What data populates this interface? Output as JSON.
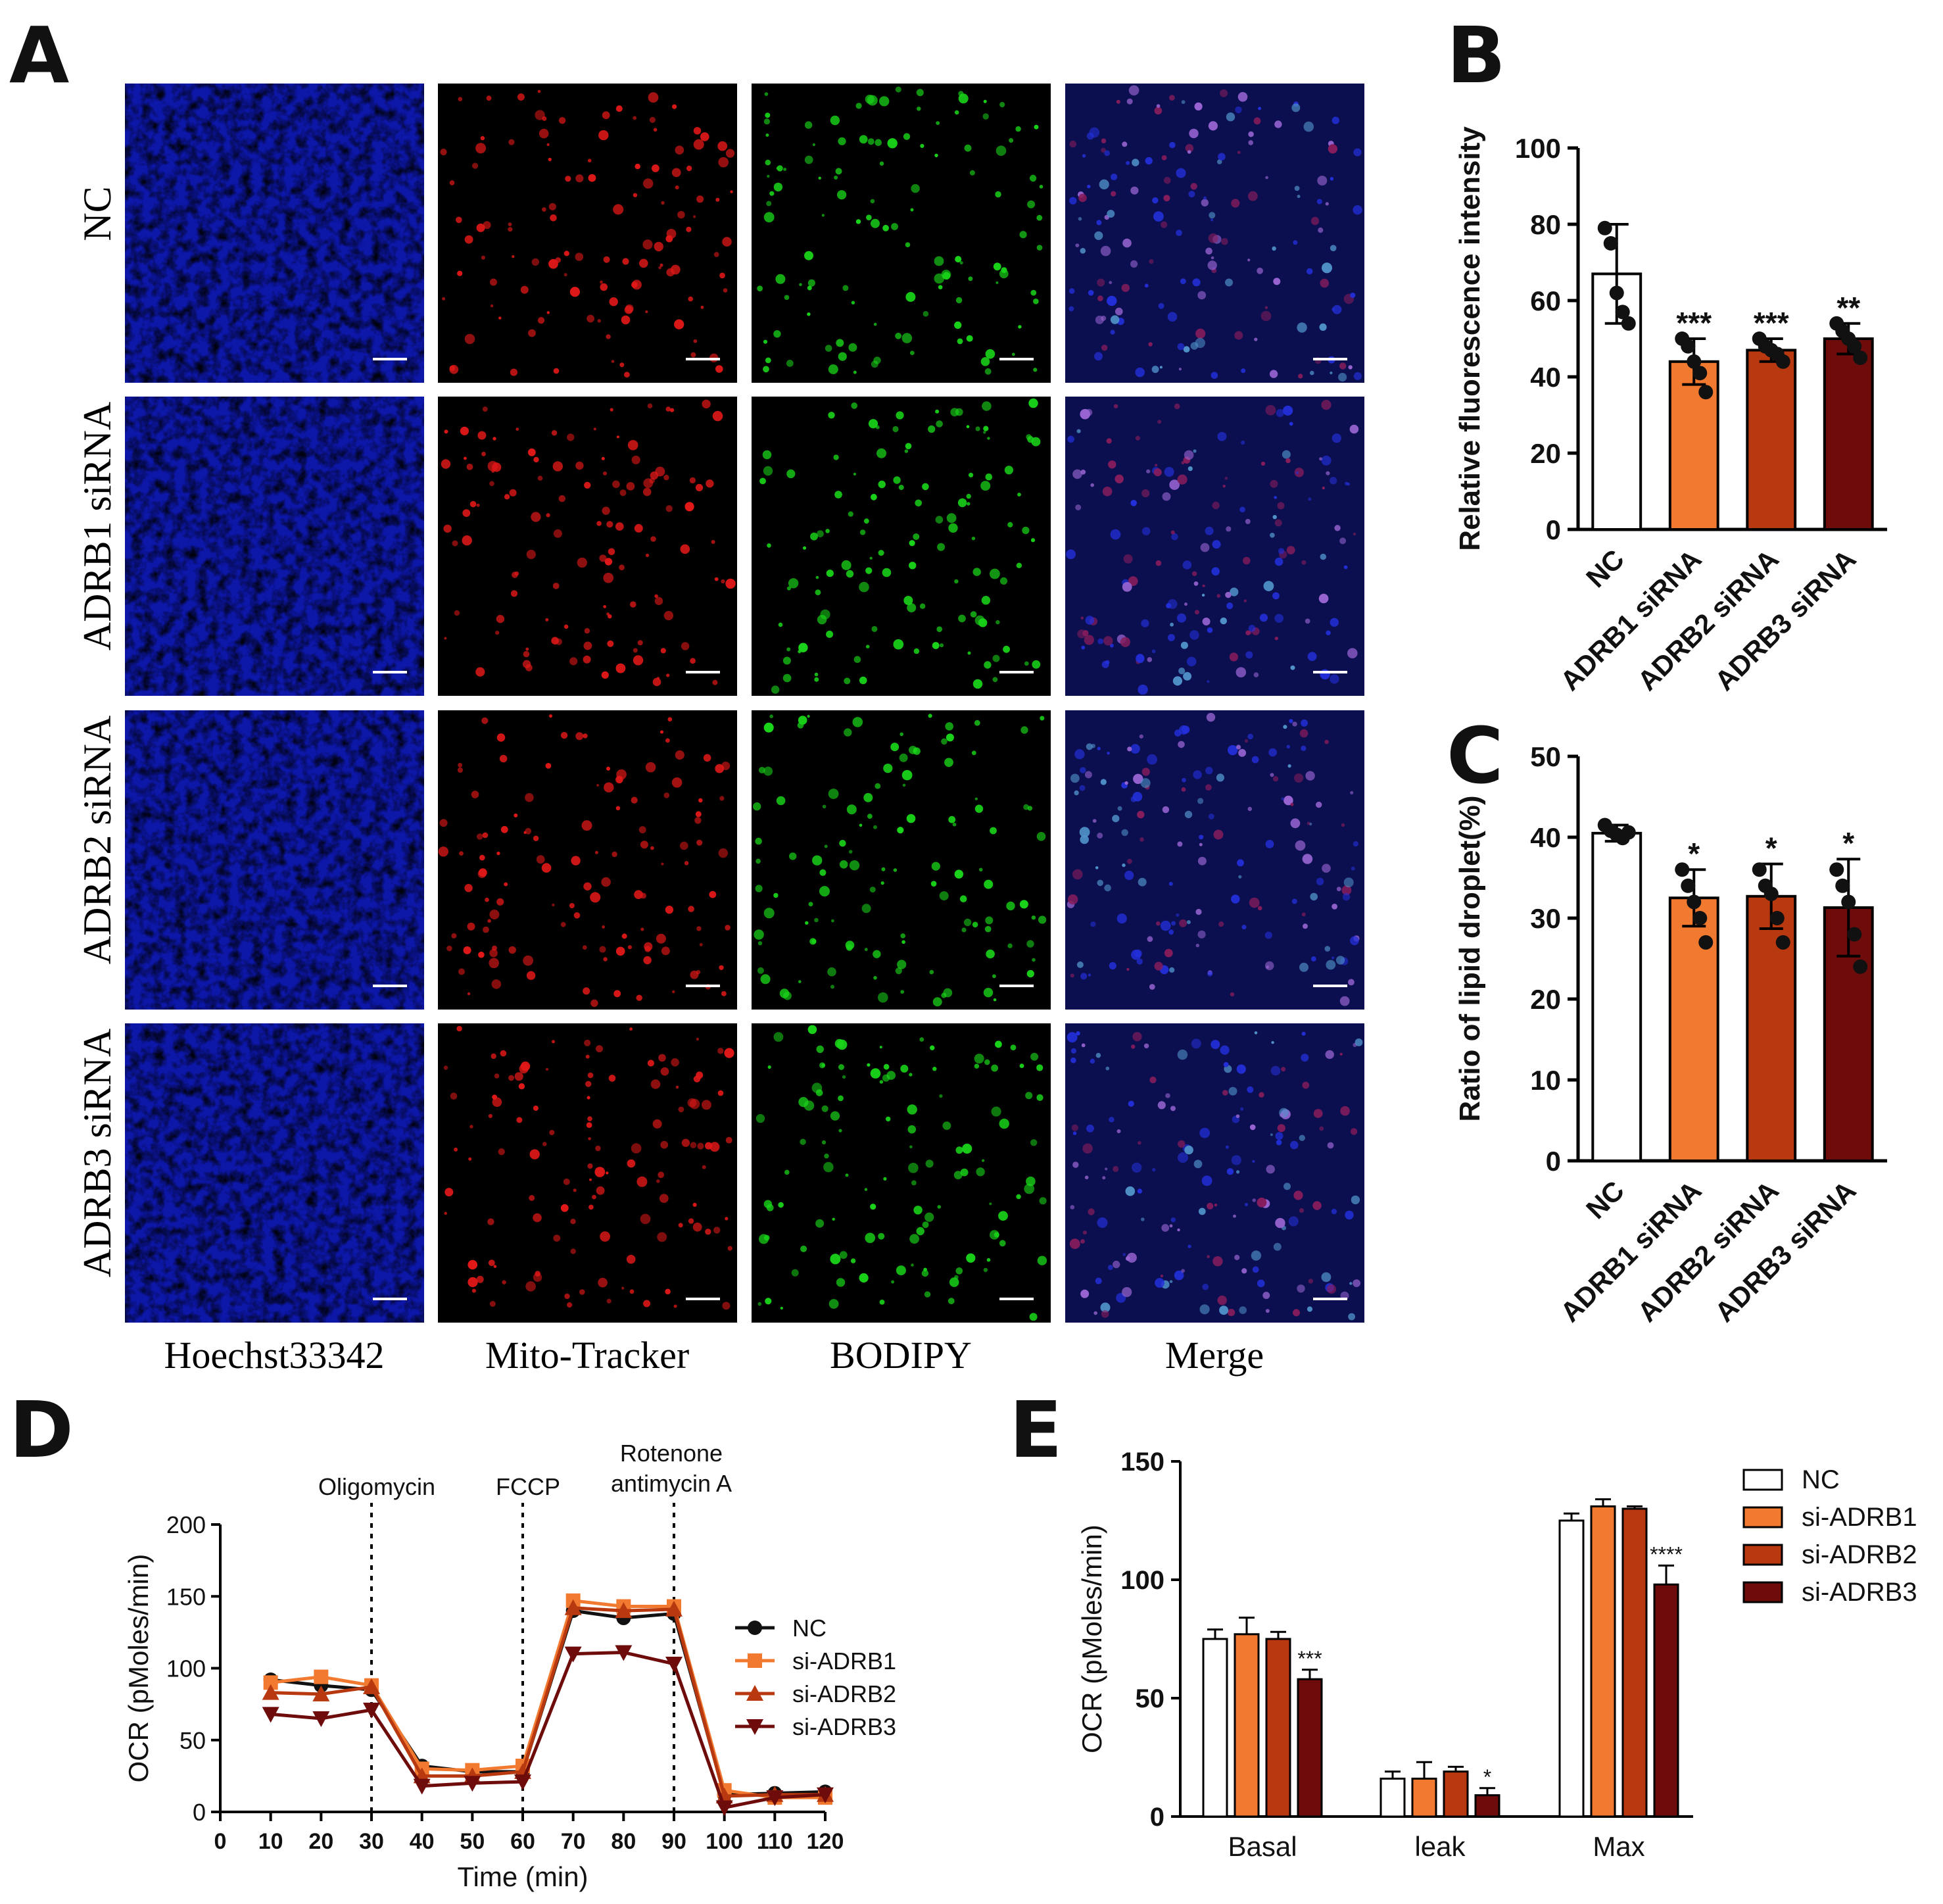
{
  "panels": {
    "A": {
      "letter": "A",
      "row_labels": [
        "NC",
        "ADRB1 siRNA",
        "ADRB2 siRNA",
        "ADRB3 siRNA"
      ],
      "column_labels": [
        "Hoechst33342",
        "Mito-Tracker",
        "BODIPY",
        "Merge"
      ],
      "channel_colors": [
        "#1a2cff",
        "#e01818",
        "#19d419",
        "#8a6cff"
      ]
    },
    "B": {
      "letter": "B"
    },
    "C": {
      "letter": "C"
    },
    "D": {
      "letter": "D"
    },
    "E": {
      "letter": "E"
    }
  },
  "chart_data": [
    {
      "id": "B",
      "type": "bar",
      "ylabel": "Relative fluorescence intensity",
      "ylim": [
        0,
        100
      ],
      "yticks": [
        0,
        20,
        40,
        60,
        80,
        100
      ],
      "categories": [
        "NC",
        "ADRB1 siRNA",
        "ADRB2 siRNA",
        "ADRB3 siRNA"
      ],
      "values": [
        67,
        44,
        47,
        50
      ],
      "errors": [
        13,
        6,
        3,
        4
      ],
      "points": [
        [
          79,
          75,
          62,
          57,
          54
        ],
        [
          50,
          48,
          44,
          41,
          36
        ],
        [
          50,
          48,
          47,
          46,
          44
        ],
        [
          54,
          52,
          50,
          48,
          45
        ]
      ],
      "significance": [
        "",
        "***",
        "***",
        "**"
      ],
      "colors": [
        "#ffffff",
        "#f27a30",
        "#b8380f",
        "#6e0b0b"
      ]
    },
    {
      "id": "C",
      "type": "bar",
      "ylabel": "Ratio of lipid droplet(%)",
      "ylim": [
        0,
        50
      ],
      "yticks": [
        0,
        10,
        20,
        30,
        40,
        50
      ],
      "categories": [
        "NC",
        "ADRB1 siRNA",
        "ADRB2 siRNA",
        "ADRB3 siRNA"
      ],
      "values": [
        40.5,
        32.5,
        32.7,
        31.3
      ],
      "errors": [
        1.0,
        3.5,
        4.0,
        6.0
      ],
      "points": [
        [
          41.5,
          40.8,
          40.3,
          39.9,
          40.6
        ],
        [
          36,
          34,
          32,
          30,
          27
        ],
        [
          36,
          34,
          33,
          30,
          27
        ],
        [
          36,
          34,
          32,
          28,
          24
        ]
      ],
      "significance": [
        "",
        "*",
        "*",
        "*"
      ],
      "colors": [
        "#ffffff",
        "#f27a30",
        "#b8380f",
        "#6e0b0b"
      ]
    },
    {
      "id": "D",
      "type": "line",
      "xlabel": "Time (min)",
      "ylabel": "OCR (pMoles/min)",
      "xlim": [
        0,
        120
      ],
      "ylim": [
        0,
        200
      ],
      "xticks": [
        0,
        10,
        20,
        30,
        40,
        50,
        60,
        70,
        80,
        90,
        100,
        110,
        120
      ],
      "yticks": [
        0,
        50,
        100,
        150,
        200
      ],
      "x": [
        10,
        20,
        30,
        40,
        50,
        60,
        70,
        80,
        90,
        100,
        110,
        120
      ],
      "series": [
        {
          "name": "NC",
          "color": "#111111",
          "marker": "circle",
          "values": [
            92,
            88,
            85,
            32,
            28,
            28,
            140,
            135,
            138,
            12,
            13,
            14
          ]
        },
        {
          "name": "si-ADRB1",
          "color": "#f27a30",
          "marker": "square",
          "values": [
            90,
            94,
            88,
            30,
            29,
            32,
            147,
            143,
            143,
            15,
            10,
            10
          ]
        },
        {
          "name": "si-ADRB2",
          "color": "#b8380f",
          "marker": "triangle",
          "values": [
            83,
            82,
            87,
            25,
            25,
            28,
            142,
            140,
            141,
            11,
            12,
            12
          ]
        },
        {
          "name": "si-ADRB3",
          "color": "#6e0b0b",
          "marker": "triangle-down",
          "values": [
            68,
            65,
            71,
            18,
            20,
            21,
            110,
            111,
            103,
            3,
            10,
            12
          ]
        }
      ],
      "annotations": [
        {
          "x": 30,
          "label": "Oligomycin"
        },
        {
          "x": 60,
          "label": "FCCP"
        },
        {
          "x": 90,
          "label_lines": [
            "Rotenone",
            "antimycin A"
          ]
        }
      ],
      "legend": "right"
    },
    {
      "id": "E",
      "type": "bar",
      "ylabel": "OCR (pMoles/min)",
      "ylim": [
        0,
        150
      ],
      "yticks": [
        0,
        50,
        100,
        150
      ],
      "categories": [
        "Basal",
        "leak",
        "Max"
      ],
      "series": [
        {
          "name": "NC",
          "color": "#ffffff",
          "values": [
            75,
            16,
            125
          ],
          "errors": [
            4,
            3,
            3
          ]
        },
        {
          "name": "si-ADRB1",
          "color": "#f27a30",
          "values": [
            77,
            16,
            131
          ],
          "errors": [
            7,
            7,
            3
          ]
        },
        {
          "name": "si-ADRB2",
          "color": "#b8380f",
          "values": [
            75,
            19,
            130
          ],
          "errors": [
            3,
            2,
            1
          ]
        },
        {
          "name": "si-ADRB3",
          "color": "#6e0b0b",
          "values": [
            58,
            9,
            98
          ],
          "errors": [
            4,
            3,
            8
          ]
        }
      ],
      "significance": [
        [
          "",
          "",
          "",
          "***"
        ],
        [
          "",
          "",
          "",
          "*"
        ],
        [
          "",
          "",
          "",
          "****"
        ]
      ],
      "legend": "right"
    }
  ]
}
